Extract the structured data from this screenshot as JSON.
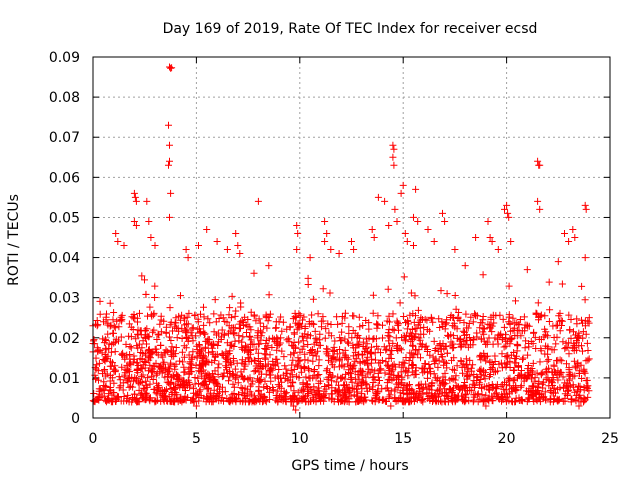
{
  "chart_data": {
    "type": "scatter",
    "title": "Day 169 of 2019, Rate Of TEC Index for receiver ecsd",
    "xlabel": "GPS time / hours",
    "ylabel": "ROTI / TECUs",
    "xlim": [
      0,
      25
    ],
    "ylim": [
      0,
      0.09
    ],
    "xticks": [
      "0",
      "5",
      "10",
      "15",
      "20",
      "25"
    ],
    "yticks": [
      "0",
      "0.01",
      "0.02",
      "0.03",
      "0.04",
      "0.05",
      "0.06",
      "0.07",
      "0.08",
      "0.09"
    ],
    "grid": true,
    "marker": "plus",
    "color": "#ff0000",
    "series": [
      {
        "name": "ROTI",
        "baseline": {
          "x_start": 0,
          "x_end": 24,
          "y_min": 0.004,
          "y_typical_max": 0.03,
          "count": 2600
        },
        "points": [
          [
            3.7,
            0.0875
          ],
          [
            3.75,
            0.0872
          ],
          [
            3.8,
            0.0873
          ],
          [
            3.65,
            0.073
          ],
          [
            3.7,
            0.068
          ],
          [
            3.7,
            0.064
          ],
          [
            3.65,
            0.063
          ],
          [
            3.75,
            0.056
          ],
          [
            3.7,
            0.05
          ],
          [
            1.1,
            0.046
          ],
          [
            1.2,
            0.044
          ],
          [
            1.5,
            0.043
          ],
          [
            2.0,
            0.056
          ],
          [
            2.05,
            0.055
          ],
          [
            2.1,
            0.054
          ],
          [
            2.0,
            0.049
          ],
          [
            2.1,
            0.048
          ],
          [
            2.6,
            0.054
          ],
          [
            2.7,
            0.049
          ],
          [
            2.8,
            0.045
          ],
          [
            3.0,
            0.043
          ],
          [
            4.5,
            0.042
          ],
          [
            4.6,
            0.04
          ],
          [
            5.1,
            0.043
          ],
          [
            5.5,
            0.047
          ],
          [
            6.0,
            0.044
          ],
          [
            6.5,
            0.042
          ],
          [
            6.9,
            0.046
          ],
          [
            7.0,
            0.043
          ],
          [
            7.1,
            0.041
          ],
          [
            8.0,
            0.054
          ],
          [
            8.5,
            0.038
          ],
          [
            9.85,
            0.048
          ],
          [
            9.9,
            0.046
          ],
          [
            9.85,
            0.042
          ],
          [
            10.5,
            0.04
          ],
          [
            11.2,
            0.049
          ],
          [
            11.3,
            0.046
          ],
          [
            11.2,
            0.044
          ],
          [
            11.5,
            0.042
          ],
          [
            11.9,
            0.041
          ],
          [
            12.5,
            0.044
          ],
          [
            12.6,
            0.042
          ],
          [
            13.5,
            0.047
          ],
          [
            13.6,
            0.045
          ],
          [
            13.8,
            0.055
          ],
          [
            14.1,
            0.054
          ],
          [
            14.3,
            0.048
          ],
          [
            14.5,
            0.068
          ],
          [
            14.55,
            0.067
          ],
          [
            14.5,
            0.065
          ],
          [
            14.55,
            0.063
          ],
          [
            14.6,
            0.052
          ],
          [
            14.7,
            0.049
          ],
          [
            14.9,
            0.056
          ],
          [
            15.0,
            0.058
          ],
          [
            15.1,
            0.046
          ],
          [
            15.2,
            0.044
          ],
          [
            15.6,
            0.057
          ],
          [
            15.5,
            0.05
          ],
          [
            15.7,
            0.049
          ],
          [
            15.5,
            0.043
          ],
          [
            16.2,
            0.047
          ],
          [
            16.5,
            0.044
          ],
          [
            16.9,
            0.051
          ],
          [
            17.0,
            0.049
          ],
          [
            17.5,
            0.042
          ],
          [
            18.0,
            0.038
          ],
          [
            18.5,
            0.045
          ],
          [
            19.1,
            0.049
          ],
          [
            19.2,
            0.045
          ],
          [
            19.3,
            0.044
          ],
          [
            19.6,
            0.042
          ],
          [
            19.9,
            0.052
          ],
          [
            20.0,
            0.053
          ],
          [
            20.05,
            0.051
          ],
          [
            20.1,
            0.05
          ],
          [
            20.2,
            0.044
          ],
          [
            21.0,
            0.037
          ],
          [
            21.5,
            0.064
          ],
          [
            21.55,
            0.063
          ],
          [
            21.6,
            0.063
          ],
          [
            21.5,
            0.054
          ],
          [
            21.6,
            0.052
          ],
          [
            22.5,
            0.039
          ],
          [
            22.8,
            0.046
          ],
          [
            23.0,
            0.044
          ],
          [
            23.2,
            0.047
          ],
          [
            23.3,
            0.045
          ],
          [
            23.8,
            0.053
          ],
          [
            23.85,
            0.052
          ],
          [
            23.8,
            0.04
          ],
          [
            9.7,
            0.003
          ],
          [
            9.8,
            0.002
          ],
          [
            14.4,
            0.003
          ],
          [
            23.5,
            0.003
          ],
          [
            5.0,
            0.003
          ],
          [
            19.0,
            0.003
          ]
        ]
      }
    ]
  }
}
